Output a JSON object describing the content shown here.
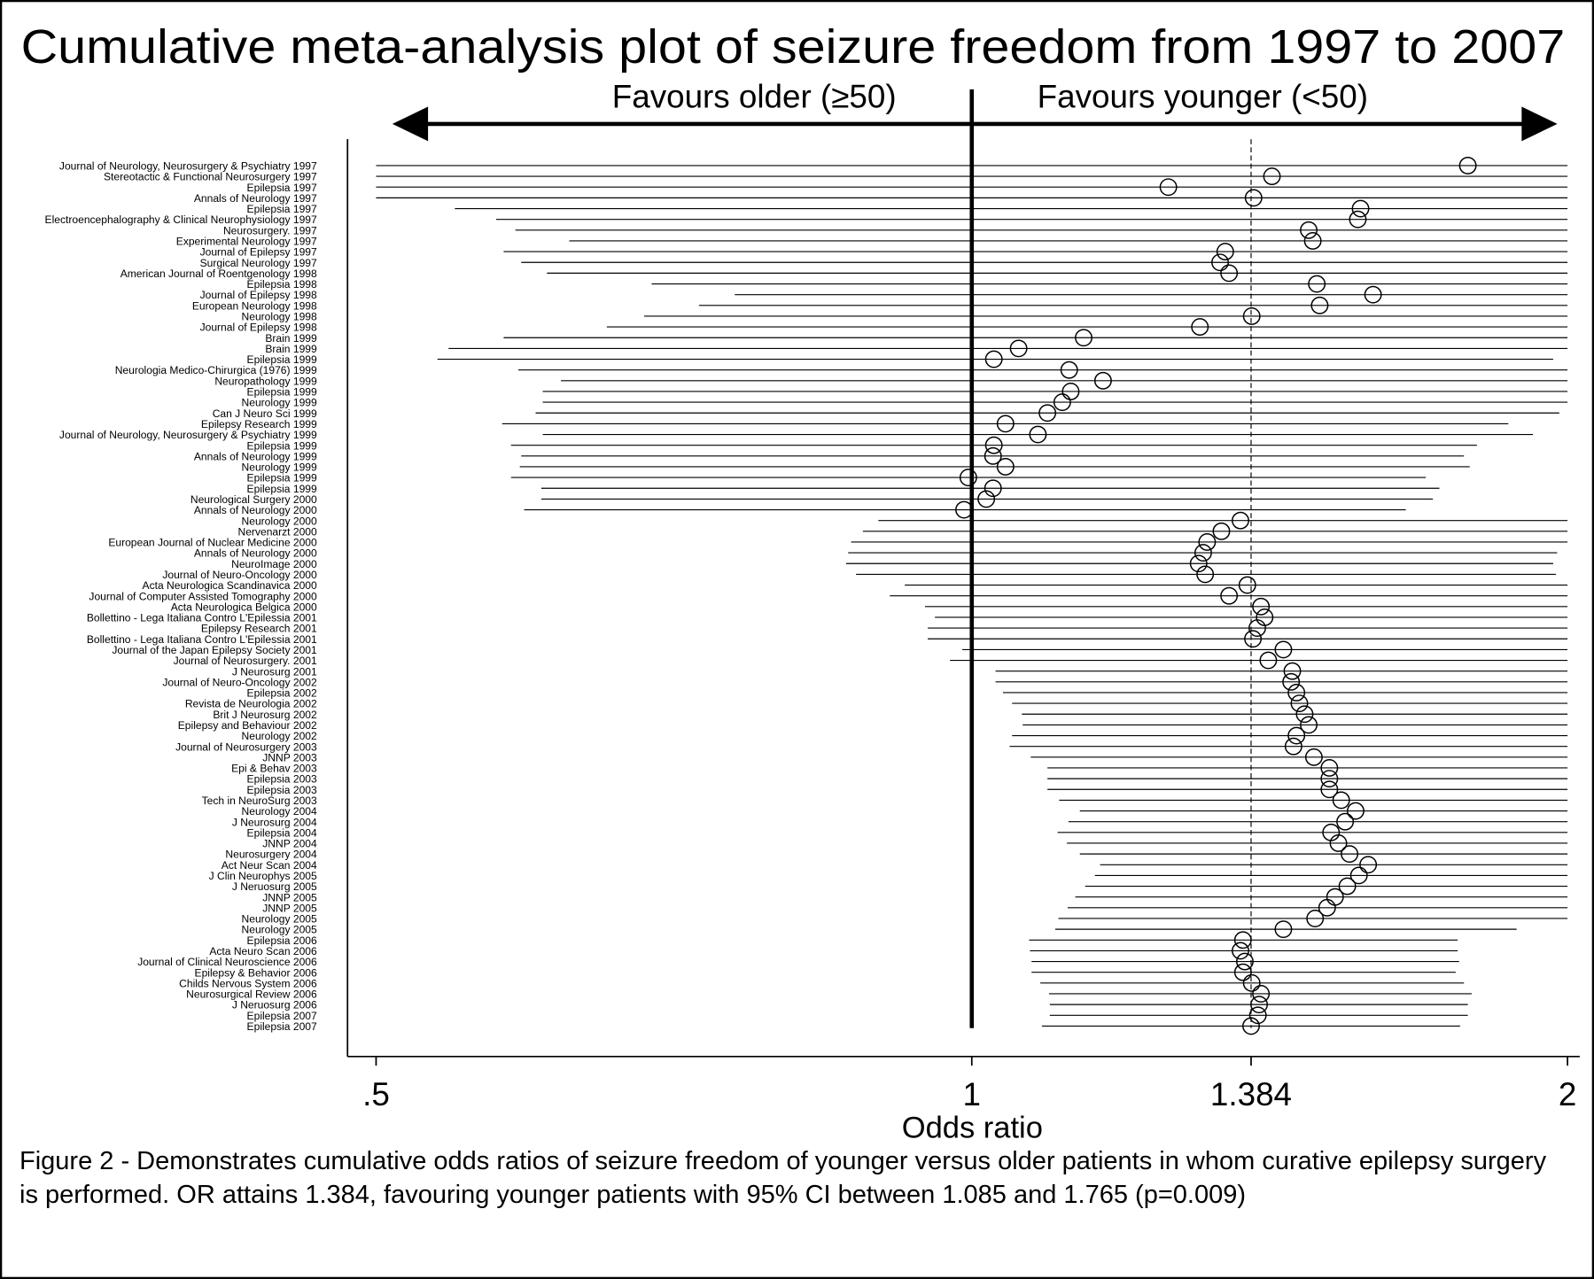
{
  "chart_data": {
    "type": "forest",
    "title": "Cumulative meta-analysis plot of seizure freedom from 1997 to 2007",
    "favours_left": "Favours older (≥50)",
    "favours_right": "Favours younger (<50)",
    "x_label": "Odds ratio",
    "caption": "Figure 2 - Demonstrates cumulative odds ratios of seizure freedom of younger versus older patients in whom curative epilepsy surgery is performed.  OR attains 1.384, favouring younger patients with 95% CI between 1.085 and 1.765 (p=0.009)",
    "x_scale": "log",
    "xlim": [
      0.5,
      2
    ],
    "xticks": [
      {
        "value": 0.5,
        "label": ".5"
      },
      1,
      1.384,
      2
    ],
    "null_line": 1,
    "reference_line": 1.384,
    "color": "#000000",
    "categories": [
      "Journal of Neurology, Neurosurgery & Psychiatry 1997",
      "Stereotactic & Functional Neurosurgery 1997",
      "Epilepsia 1997",
      "Annals of Neurology 1997",
      "Epilepsia 1997",
      "Electroencephalography & Clinical Neurophysiology 1997",
      "Neurosurgery. 1997",
      "Experimental Neurology 1997",
      "Journal of Epilepsy 1997",
      "Surgical Neurology 1997",
      "American Journal of Roentgenology 1998",
      "Epilepsia 1998",
      "Journal of Epilepsy 1998",
      "European Neurology 1998",
      "Neurology 1998",
      "Journal of Epilepsy 1998",
      "Brain 1999",
      "Brain 1999",
      "Epilepsia 1999",
      "Neurologia Medico-Chirurgica (1976) 1999",
      "Neuropathology 1999",
      "Epilepsia 1999",
      "Neurology 1999",
      "Can J Neuro Sci 1999",
      "Epilepsy Research 1999",
      "Journal of Neurology, Neurosurgery & Psychiatry 1999",
      "Epilepsia 1999",
      "Annals of Neurology 1999",
      "Neurology 1999",
      "Epilepsia 1999",
      "Epilepsia 1999",
      "Neurological Surgery 2000",
      "Annals of Neurology 2000",
      "Neurology 2000",
      "Nervenarzt 2000",
      "European Journal of Nuclear Medicine 2000",
      "Annals of Neurology 2000",
      "NeuroImage 2000",
      "Journal of Neuro-Oncology 2000",
      "Acta Neurologica Scandinavica 2000",
      "Journal of Computer Assisted Tomography 2000",
      "Acta Neurologica Belgica 2000",
      "Bollettino - Lega Italiana Contro L'Epilessia 2001",
      "Epilepsy Research 2001",
      "Bollettino - Lega Italiana Contro L'Epilessia 2001",
      "Journal of the Japan Epilepsy Society 2001",
      "Journal of Neurosurgery. 2001",
      "J Neurosurg 2001",
      "Journal of Neuro-Oncology 2002",
      "Epilepsia 2002",
      "Revista de Neurologia 2002",
      "Brit J Neurosurg 2002",
      "Epilepsy and Behaviour 2002",
      "Neurology 2002",
      "Journal of Neurosurgery 2003",
      "JNNP 2003",
      "Epi & Behav 2003",
      "Epilepsia 2003",
      "Epilepsia 2003",
      "Tech in NeuroSurg 2003",
      "Neurology 2004",
      "J Neurosurg 2004",
      "Epilepsia 2004",
      "JNNP 2004",
      "Neurosurgery 2004",
      "Act Neur Scan 2004",
      "J Clin Neurophys 2005",
      "J Neruosurg 2005",
      "JNNP 2005",
      "JNNP 2005",
      "Neurology 2005",
      "Neurology 2005",
      "Epilepsia 2006",
      "Acta Neuro Scan 2006",
      "Journal of Clinical Neuroscience 2006",
      "Epilepsy & Behavior 2006",
      "Childs Nervous System 2006",
      "Neurosurgical Review 2006",
      "J Neruosurg 2006",
      "Epilepsia 2007",
      "Epilepsia 2007"
    ],
    "values": [
      1.781,
      1.418,
      1.257,
      1.388,
      1.572,
      1.567,
      1.48,
      1.487,
      1.343,
      1.335,
      1.349,
      1.494,
      1.595,
      1.499,
      1.385,
      1.304,
      1.139,
      1.056,
      1.026,
      1.12,
      1.165,
      1.122,
      1.111,
      1.092,
      1.04,
      1.08,
      1.026,
      1.025,
      1.04,
      0.996,
      1.025,
      1.017,
      0.991,
      1.367,
      1.337,
      1.315,
      1.309,
      1.302,
      1.312,
      1.378,
      1.349,
      1.4,
      1.406,
      1.394,
      1.387,
      1.437,
      1.412,
      1.452,
      1.45,
      1.459,
      1.464,
      1.473,
      1.48,
      1.459,
      1.454,
      1.489,
      1.516,
      1.516,
      1.516,
      1.537,
      1.563,
      1.544,
      1.519,
      1.532,
      1.552,
      1.586,
      1.569,
      1.548,
      1.526,
      1.512,
      1.491,
      1.437,
      1.371,
      1.367,
      1.374,
      1.371,
      1.385,
      1.4,
      1.397,
      1.395,
      1.384
    ],
    "lower": [
      0.5,
      0.5,
      0.5,
      0.5,
      0.548,
      0.575,
      0.588,
      0.626,
      0.58,
      0.592,
      0.61,
      0.689,
      0.759,
      0.728,
      0.683,
      0.654,
      0.58,
      0.544,
      0.537,
      0.59,
      0.62,
      0.607,
      0.607,
      0.602,
      0.579,
      0.607,
      0.585,
      0.592,
      0.591,
      0.585,
      0.606,
      0.606,
      0.594,
      0.897,
      0.881,
      0.869,
      0.866,
      0.864,
      0.874,
      0.925,
      0.909,
      0.947,
      0.958,
      0.95,
      0.95,
      0.989,
      0.975,
      1.028,
      1.028,
      1.037,
      1.048,
      1.06,
      1.061,
      1.048,
      1.045,
      1.071,
      1.092,
      1.092,
      1.092,
      1.107,
      1.134,
      1.119,
      1.105,
      1.117,
      1.134,
      1.161,
      1.154,
      1.141,
      1.128,
      1.118,
      1.106,
      1.102,
      1.069,
      1.07,
      1.072,
      1.072,
      1.083,
      1.094,
      1.095,
      1.095,
      1.085
    ],
    "upper": [
      2,
      2,
      2,
      2,
      2,
      2,
      2,
      2,
      2,
      2,
      2,
      2,
      2,
      2,
      2,
      2,
      2,
      2,
      1.967,
      2,
      2,
      2,
      2,
      1.981,
      1.867,
      1.921,
      1.8,
      1.773,
      1.785,
      1.696,
      1.723,
      1.71,
      1.657,
      2,
      2,
      2,
      1.976,
      1.967,
      1.973,
      2,
      2,
      2,
      2,
      2,
      2,
      2,
      2,
      2,
      2,
      2,
      2,
      2,
      2,
      2,
      2,
      2,
      2,
      2,
      2,
      2,
      2,
      2,
      2,
      2,
      2,
      2,
      2,
      2,
      2,
      2,
      2,
      1.885,
      1.76,
      1.76,
      1.763,
      1.756,
      1.773,
      1.789,
      1.781,
      1.781,
      1.765
    ]
  }
}
